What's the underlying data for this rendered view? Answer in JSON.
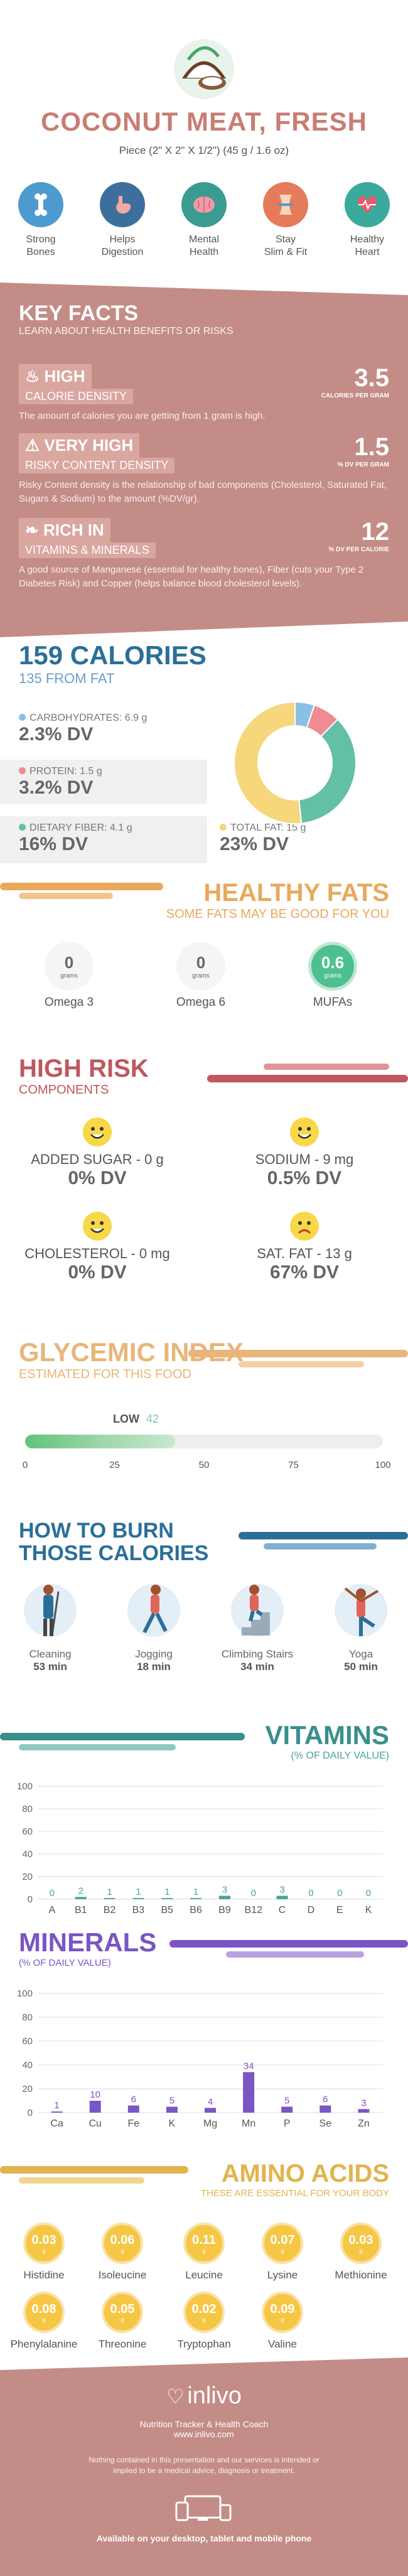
{
  "header": {
    "title": "COCONUT MEAT, FRESH",
    "serving": "Piece (2\" X 2\" X 1/2\") (45 g / 1.6 oz)",
    "benefits": [
      {
        "label1": "Strong",
        "label2": "Bones",
        "icon": "bone-icon",
        "color": "#4d9ad0"
      },
      {
        "label1": "Helps",
        "label2": "Digestion",
        "icon": "stomach-icon",
        "color": "#3d6f9d"
      },
      {
        "label1": "Mental",
        "label2": "Health",
        "icon": "brain-icon",
        "color": "#3a9b91"
      },
      {
        "label1": "Stay",
        "label2": "Slim & Fit",
        "icon": "waist-icon",
        "color": "#e57b5b"
      },
      {
        "label1": "Healthy",
        "label2": "Heart",
        "icon": "heart-icon",
        "color": "#3aaa9c"
      }
    ]
  },
  "key_facts": {
    "title": "KEY FACTS",
    "subtitle": "LEARN ABOUT HEALTH BENEFITS OR RISKS",
    "facts": [
      {
        "badge1": "HIGH",
        "badge2": "CALORIE DENSITY",
        "value": "3.5",
        "unit": "CALORIES PER GRAM",
        "desc": "The amount of calories you are getting from 1 gram is high.",
        "icon": "flame-icon"
      },
      {
        "badge1": "VERY HIGH",
        "badge2": "RISKY CONTENT DENSITY",
        "value": "1.5",
        "unit": "% DV PER GRAM",
        "desc": "Risky Content density is the relationship of bad components (Cholesterol, Saturated Fat, Sugars & Sodium) to the amount (%DV/gr).",
        "icon": "warning-icon"
      },
      {
        "badge1": "RICH IN",
        "badge2": "VITAMINS & MINERALS",
        "value": "12",
        "unit": "% DV PER CALORIE",
        "desc": "A good source of Manganese (essential for healthy bones), Fiber (cuts your Type 2 Diabetes Risk) and Copper (helps balance blood cholesterol levels).",
        "icon": "leaf-icon"
      }
    ]
  },
  "calories": {
    "title": "159 CALORIES",
    "from_fat": "135 FROM FAT",
    "nutrients": [
      {
        "label": "CARBOHYDRATES: 6.9 g",
        "dv": "2.3% DV",
        "color": "#8cc0e2"
      },
      {
        "label": "PROTEIN: 1.5 g",
        "dv": "3.2% DV",
        "color": "#ef8b92"
      },
      {
        "label": "DIETARY FIBER: 4.1 g",
        "dv": "16% DV",
        "color": "#63bfa5"
      },
      {
        "label": "TOTAL FAT: 15 g",
        "dv": "23% DV",
        "color": "#f6d77c"
      }
    ]
  },
  "healthy_fats": {
    "title": "HEALTHY FATS",
    "subtitle": "SOME FATS MAY BE GOOD FOR YOU",
    "unit": "grams",
    "items": [
      {
        "value": "0",
        "label": "Omega 3"
      },
      {
        "value": "0",
        "label": "Omega 6"
      },
      {
        "value": "0.6",
        "label": "MUFAs"
      }
    ]
  },
  "high_risk": {
    "title": "HIGH RISK",
    "subtitle": "COMPONENTS",
    "items": [
      {
        "label": "ADDED SUGAR - 0 g",
        "dv": "0% DV",
        "mood": "happy"
      },
      {
        "label": "SODIUM - 9 mg",
        "dv": "0.5% DV",
        "mood": "happy"
      },
      {
        "label": "CHOLESTEROL - 0 mg",
        "dv": "0% DV",
        "mood": "happy"
      },
      {
        "label": "SAT. FAT - 13 g",
        "dv": "67% DV",
        "mood": "sad"
      }
    ]
  },
  "glycemic": {
    "title": "GLYCEMIC INDEX",
    "subtitle": "ESTIMATED FOR THIS FOOD",
    "level": "LOW",
    "value": 42,
    "ticks": [
      "0",
      "25",
      "50",
      "75",
      "100"
    ]
  },
  "burn": {
    "title1": "HOW TO BURN",
    "title2": "THOSE CALORIES",
    "activities": [
      {
        "label": "Cleaning",
        "time": "53 min",
        "icon": "cleaning-icon"
      },
      {
        "label": "Jogging",
        "time": "18 min",
        "icon": "jogging-icon"
      },
      {
        "label": "Climbing Stairs",
        "time": "34 min",
        "icon": "stairs-icon"
      },
      {
        "label": "Yoga",
        "time": "50 min",
        "icon": "yoga-icon"
      }
    ]
  },
  "chart_data": [
    {
      "type": "bar",
      "title": "VITAMINS",
      "subtitle": "(% OF DAILY VALUE)",
      "categories": [
        "A",
        "B1",
        "B2",
        "B3",
        "B5",
        "B6",
        "B9",
        "B12",
        "C",
        "D",
        "E",
        "K"
      ],
      "values": [
        0,
        2,
        1,
        1,
        1,
        1,
        3,
        0,
        3,
        0,
        0,
        0
      ],
      "yticks": [
        "0",
        "20",
        "40",
        "60",
        "80",
        "100"
      ],
      "ylim": [
        0,
        100
      ],
      "color": "#4aa39a"
    },
    {
      "type": "bar",
      "title": "MINERALS",
      "subtitle": "(% OF DAILY VALUE)",
      "categories": [
        "Ca",
        "Cu",
        "Fe",
        "K",
        "Mg",
        "Mn",
        "P",
        "Se",
        "Zn"
      ],
      "values": [
        1,
        10,
        6,
        5,
        4,
        34,
        5,
        6,
        3
      ],
      "yticks": [
        "0",
        "20",
        "40",
        "60",
        "80",
        "100"
      ],
      "ylim": [
        0,
        100
      ],
      "color": "#7a55c4"
    },
    {
      "type": "pie",
      "categories": [
        "Carbohydrates",
        "Protein",
        "Dietary Fiber",
        "Total Fat"
      ],
      "values": [
        2.3,
        3.2,
        16,
        23
      ],
      "colors": [
        "#8cc0e2",
        "#ef8b92",
        "#63bfa5",
        "#f6d77c"
      ]
    }
  ],
  "amino": {
    "title": "AMINO ACIDS",
    "subtitle": "THESE ARE ESSENTIAL FOR YOUR BODY",
    "unit": "g",
    "items": [
      {
        "label": "Histidine",
        "value": "0.03"
      },
      {
        "label": "Isoleucine",
        "value": "0.06"
      },
      {
        "label": "Leucine",
        "value": "0.11"
      },
      {
        "label": "Lysine",
        "value": "0.07"
      },
      {
        "label": "Methionine",
        "value": "0.03"
      },
      {
        "label": "Phenylalanine",
        "value": "0.08"
      },
      {
        "label": "Threonine",
        "value": "0.05"
      },
      {
        "label": "Tryptophan",
        "value": "0.02"
      },
      {
        "label": "Valine",
        "value": "0.09"
      }
    ]
  },
  "footer": {
    "brand": "inlivo",
    "tagline": "Nutrition Tracker & Health Coach",
    "url": "www.inlivo.com",
    "disclaimer": "Nothing contained in this presentation and our services is intended or implied to be a medical advice, diagnosis or treatment.",
    "devices": "Available on your desktop, tablet and mobile phone"
  }
}
